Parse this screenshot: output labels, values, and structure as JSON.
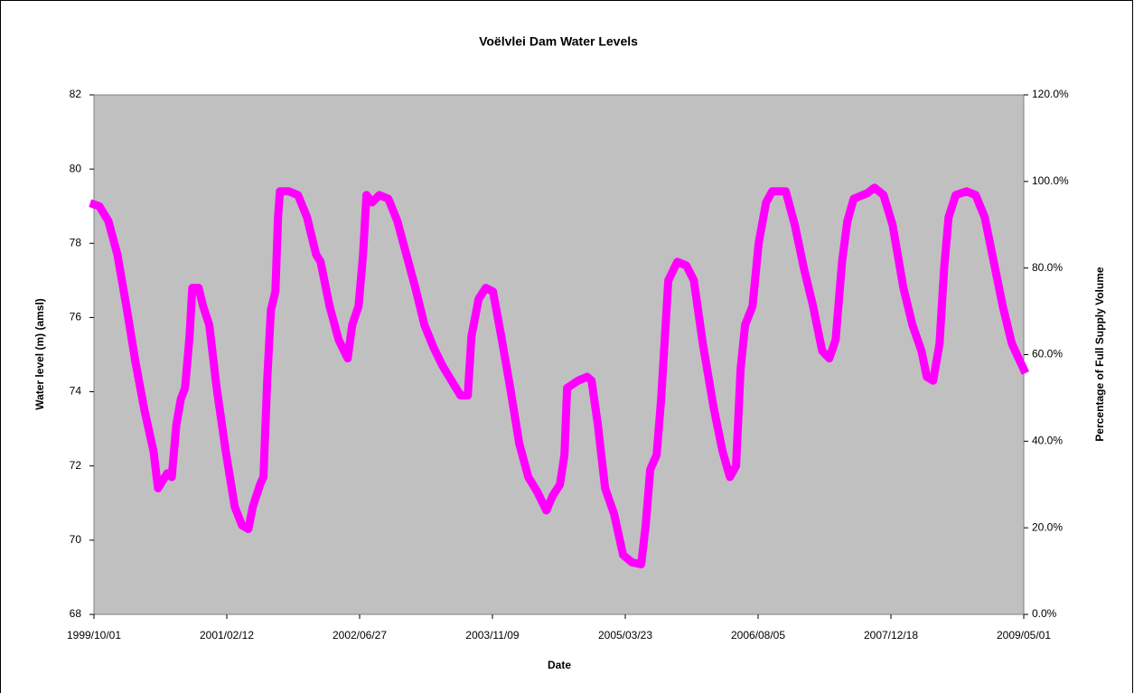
{
  "chart_data": {
    "type": "line",
    "title": "Voëlvlei Dam Water Levels",
    "xlabel": "Date",
    "ylabel": "Water level (m) (amsl)",
    "y2label": "Percentage of Full Supply Volume",
    "color": "#ff00ff",
    "xlim": [
      "1999/10/01",
      "2009/05/01"
    ],
    "xticks": [
      "1999/10/01",
      "2001/02/12",
      "2002/06/27",
      "2003/11/09",
      "2005/03/23",
      "2006/08/05",
      "2007/12/18",
      "2009/05/01"
    ],
    "ylim": [
      68,
      82
    ],
    "yticks": [
      68,
      70,
      72,
      74,
      76,
      78,
      80,
      82
    ],
    "y2lim": [
      0,
      120
    ],
    "y2ticks": [
      {
        "value": 0,
        "label": "0.0%"
      },
      {
        "value": 20,
        "label": "20.0%"
      },
      {
        "value": 40,
        "label": "40.0%"
      },
      {
        "value": 60,
        "label": "60.0%"
      },
      {
        "value": 80,
        "label": "80.0%"
      },
      {
        "value": 100,
        "label": "100.0%"
      },
      {
        "value": 120,
        "label": "120.0%"
      }
    ],
    "x": [
      "1999/10/01",
      "1999/10/21",
      "1999/11/24",
      "1999/12/28",
      "2000/01/31",
      "2000/03/05",
      "2000/04/08",
      "2000/05/12",
      "2000/05/29",
      "2000/07/03",
      "2000/07/20",
      "2000/08/06",
      "2000/08/23",
      "2000/09/08",
      "2000/09/25",
      "2000/10/05",
      "2000/10/29",
      "2000/11/15",
      "2000/12/08",
      "2001/01/05",
      "2001/02/08",
      "2001/03/14",
      "2001/04/10",
      "2001/05/04",
      "2001/05/21",
      "2001/06/17",
      "2001/06/30",
      "2001/07/14",
      "2001/07/28",
      "2001/08/14",
      "2001/08/24",
      "2001/08/31",
      "2001/10/04",
      "2001/11/07",
      "2001/12/11",
      "2002/01/14",
      "2002/01/31",
      "2002/03/06",
      "2002/04/09",
      "2002/05/13",
      "2002/05/30",
      "2002/06/23",
      "2002/07/10",
      "2002/07/23",
      "2002/08/13",
      "2002/09/09",
      "2002/10/13",
      "2002/11/16",
      "2002/12/20",
      "2003/01/23",
      "2003/02/26",
      "2003/04/01",
      "2003/05/05",
      "2003/06/08",
      "2003/07/12",
      "2003/08/08",
      "2003/08/22",
      "2003/09/18",
      "2003/10/15",
      "2003/11/11",
      "2003/12/12",
      "2004/01/15",
      "2004/02/18",
      "2004/03/23",
      "2004/04/26",
      "2004/05/30",
      "2004/06/23",
      "2004/07/20",
      "2004/08/06",
      "2004/08/16",
      "2004/09/26",
      "2004/10/30",
      "2004/11/16",
      "2004/12/10",
      "2005/01/06",
      "2005/02/09",
      "2005/03/15",
      "2005/04/18",
      "2005/05/22",
      "2005/06/08",
      "2005/06/25",
      "2005/07/19",
      "2005/08/05",
      "2005/09/01",
      "2005/10/05",
      "2005/11/08",
      "2005/12/06",
      "2006/01/09",
      "2006/02/18",
      "2006/03/24",
      "2006/04/21",
      "2006/05/14",
      "2006/05/31",
      "2006/06/17",
      "2006/07/15",
      "2006/08/07",
      "2006/09/04",
      "2006/09/27",
      "2006/11/17",
      "2006/12/21",
      "2007/01/25",
      "2007/02/28",
      "2007/04/03",
      "2007/04/30",
      "2007/05/24",
      "2007/06/17",
      "2007/07/07",
      "2007/07/31",
      "2007/09/20",
      "2007/10/17",
      "2007/11/20",
      "2007/12/24",
      "2008/02/03",
      "2008/03/08",
      "2008/04/11",
      "2008/05/01",
      "2008/05/25",
      "2008/06/18",
      "2008/07/05",
      "2008/07/22",
      "2008/08/18",
      "2008/09/28",
      "2008/11/01",
      "2008/12/05",
      "2009/01/08",
      "2009/02/11",
      "2009/03/17",
      "2009/05/01"
    ],
    "values": [
      79.05,
      79.0,
      78.6,
      77.7,
      76.3,
      74.8,
      73.5,
      72.4,
      71.4,
      71.8,
      71.7,
      73.1,
      73.8,
      74.1,
      75.5,
      76.8,
      76.8,
      76.3,
      75.8,
      74.1,
      72.4,
      70.9,
      70.4,
      70.3,
      70.9,
      71.5,
      71.7,
      74.3,
      76.2,
      76.7,
      78.7,
      79.4,
      79.4,
      79.3,
      78.7,
      77.7,
      77.5,
      76.3,
      75.4,
      74.9,
      75.8,
      76.3,
      77.7,
      79.3,
      79.1,
      79.3,
      79.2,
      78.6,
      77.7,
      76.8,
      75.8,
      75.2,
      74.7,
      74.3,
      73.9,
      73.9,
      75.5,
      76.5,
      76.8,
      76.7,
      75.5,
      74.1,
      72.6,
      71.7,
      71.3,
      70.8,
      71.2,
      71.5,
      72.3,
      74.1,
      74.3,
      74.4,
      74.3,
      73.1,
      71.4,
      70.7,
      69.6,
      69.4,
      69.35,
      70.4,
      71.9,
      72.3,
      73.8,
      77.0,
      77.5,
      77.4,
      77.0,
      75.3,
      73.6,
      72.4,
      71.7,
      72.0,
      74.6,
      75.8,
      76.3,
      78.0,
      79.1,
      79.4,
      79.4,
      78.5,
      77.3,
      76.3,
      75.1,
      74.9,
      75.4,
      77.5,
      78.6,
      79.2,
      79.35,
      79.5,
      79.3,
      78.5,
      76.8,
      75.8,
      75.1,
      74.4,
      74.3,
      75.3,
      77.3,
      78.7,
      79.3,
      79.4,
      79.3,
      78.7,
      77.5,
      76.3,
      75.3,
      74.6
    ]
  }
}
